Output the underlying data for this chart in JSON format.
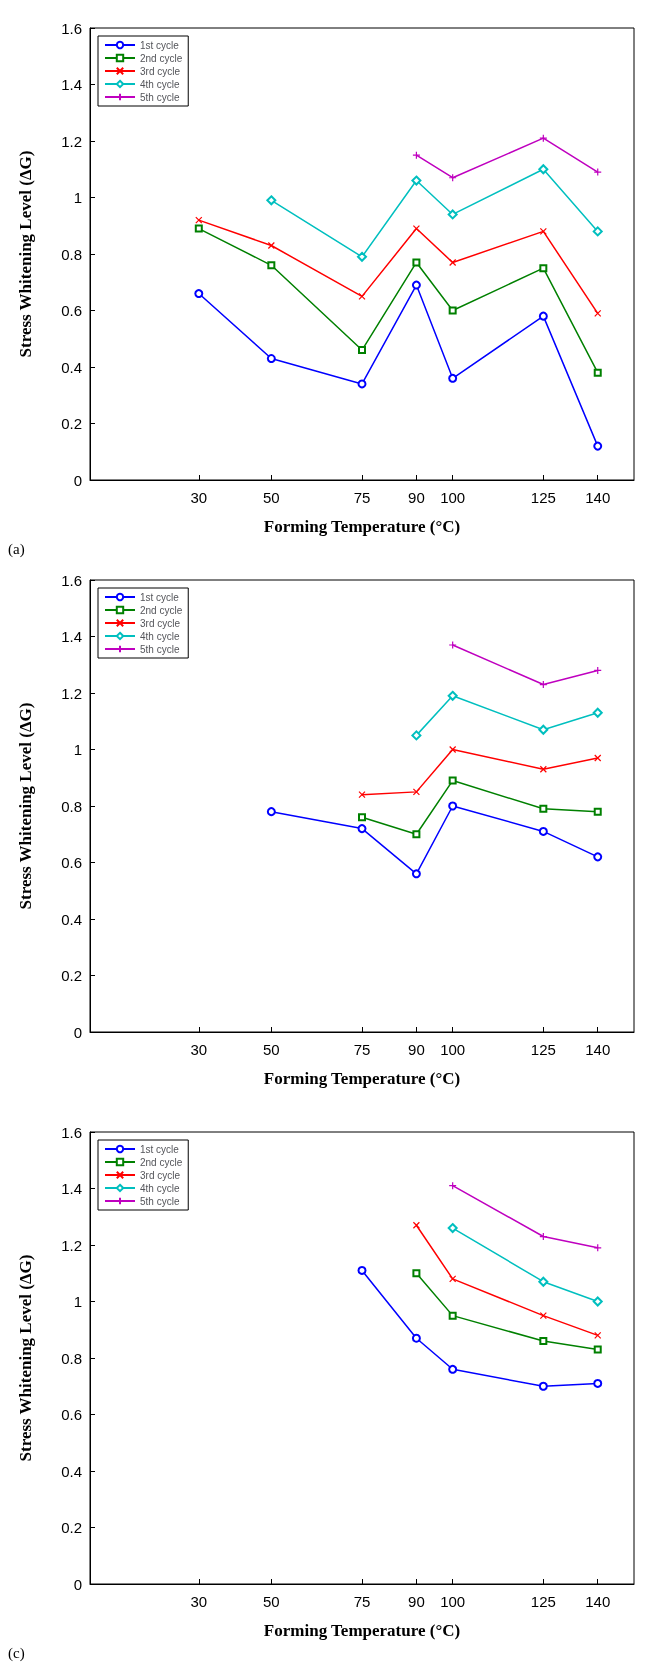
{
  "chart_data": [
    {
      "type": "line",
      "xlabel": "Forming Temperature (°C)",
      "ylabel": "Stress Whitening Level (ΔG)",
      "annotations": [
        "(a)"
      ],
      "xlim": [
        0,
        150
      ],
      "xticks": [
        30,
        50,
        75,
        90,
        100,
        125,
        140
      ],
      "ylim": [
        0,
        1.6
      ],
      "yticks": [
        0,
        0.2,
        0.4,
        0.6,
        0.8,
        1,
        1.2,
        1.4,
        1.6
      ],
      "grid": false,
      "legend": "top left",
      "line_style": "solid",
      "series": [
        {
          "name": "1st cycle",
          "color": "#0000ff",
          "marker": "circle",
          "x": [
            30,
            50,
            75,
            90,
            100,
            125,
            140
          ],
          "values": [
            0.66,
            0.43,
            0.34,
            0.69,
            0.36,
            0.58,
            0.12
          ]
        },
        {
          "name": "2nd cycle",
          "color": "#008000",
          "marker": "square",
          "x": [
            30,
            50,
            75,
            90,
            100,
            125,
            140
          ],
          "values": [
            0.89,
            0.76,
            0.46,
            0.77,
            0.6,
            0.75,
            0.38
          ]
        },
        {
          "name": "3rd cycle",
          "color": "#ff0000",
          "marker": "cross",
          "x": [
            30,
            50,
            75,
            90,
            100,
            125,
            140
          ],
          "values": [
            0.92,
            0.83,
            0.65,
            0.89,
            0.77,
            0.88,
            0.59
          ]
        },
        {
          "name": "4th cycle",
          "color": "#00bfbf",
          "marker": "diamond",
          "x": [
            50,
            75,
            90,
            100,
            125,
            140
          ],
          "values": [
            0.99,
            0.79,
            1.06,
            0.94,
            1.1,
            0.88
          ]
        },
        {
          "name": "5th cycle",
          "color": "#bf00bf",
          "marker": "plus",
          "x": [
            90,
            100,
            125,
            140
          ],
          "values": [
            1.15,
            1.07,
            1.21,
            1.09
          ]
        }
      ]
    },
    {
      "type": "line",
      "xlabel": "Forming Temperature (°C)",
      "ylabel": "Stress Whitening Level (ΔG)",
      "xlim": [
        0,
        150
      ],
      "xticks": [
        30,
        50,
        75,
        90,
        100,
        125,
        140
      ],
      "ylim": [
        0,
        1.6
      ],
      "yticks": [
        0,
        0.2,
        0.4,
        0.6,
        0.8,
        1,
        1.2,
        1.4,
        1.6
      ],
      "grid": false,
      "legend": "top left",
      "line_style": "solid",
      "series": [
        {
          "name": "1st cycle",
          "color": "#0000ff",
          "marker": "circle",
          "x": [
            50,
            75,
            90,
            100,
            125,
            140
          ],
          "values": [
            0.78,
            0.72,
            0.56,
            0.8,
            0.71,
            0.62
          ]
        },
        {
          "name": "2nd cycle",
          "color": "#008000",
          "marker": "square",
          "x": [
            75,
            90,
            100,
            125,
            140
          ],
          "values": [
            0.76,
            0.7,
            0.89,
            0.79,
            0.78
          ]
        },
        {
          "name": "3rd cycle",
          "color": "#ff0000",
          "marker": "cross",
          "x": [
            75,
            90,
            100,
            125,
            140
          ],
          "values": [
            0.84,
            0.85,
            1.0,
            0.93,
            0.97
          ]
        },
        {
          "name": "4th cycle",
          "color": "#00bfbf",
          "marker": "diamond",
          "x": [
            90,
            100,
            125,
            140
          ],
          "values": [
            1.05,
            1.19,
            1.07,
            1.13
          ]
        },
        {
          "name": "5th cycle",
          "color": "#bf00bf",
          "marker": "plus",
          "x": [
            100,
            125,
            140
          ],
          "values": [
            1.37,
            1.23,
            1.28
          ]
        }
      ]
    },
    {
      "type": "line",
      "xlabel": "Forming Temperature (°C)",
      "ylabel": "Stress Whitening Level (ΔG)",
      "annotations": [
        "(c)"
      ],
      "xlim": [
        0,
        150
      ],
      "xticks": [
        30,
        50,
        75,
        90,
        100,
        125,
        140
      ],
      "ylim": [
        0,
        1.6
      ],
      "yticks": [
        0,
        0.2,
        0.4,
        0.6,
        0.8,
        1,
        1.2,
        1.4,
        1.6
      ],
      "grid": false,
      "legend": "top left",
      "line_style": "solid",
      "series": [
        {
          "name": "1st cycle",
          "color": "#0000ff",
          "marker": "circle",
          "x": [
            75,
            90,
            100,
            125,
            140
          ],
          "values": [
            1.11,
            0.87,
            0.76,
            0.7,
            0.71
          ]
        },
        {
          "name": "2nd cycle",
          "color": "#008000",
          "marker": "square",
          "x": [
            90,
            100,
            125,
            140
          ],
          "values": [
            1.1,
            0.95,
            0.86,
            0.83
          ]
        },
        {
          "name": "3rd cycle",
          "color": "#ff0000",
          "marker": "cross",
          "x": [
            90,
            100,
            125,
            140
          ],
          "values": [
            1.27,
            1.08,
            0.95,
            0.88
          ]
        },
        {
          "name": "4th cycle",
          "color": "#00bfbf",
          "marker": "diamond",
          "x": [
            100,
            125,
            140
          ],
          "values": [
            1.26,
            1.07,
            1.0
          ]
        },
        {
          "name": "5th cycle",
          "color": "#bf00bf",
          "marker": "plus",
          "x": [
            100,
            125,
            140
          ],
          "values": [
            1.41,
            1.23,
            1.19
          ]
        }
      ]
    }
  ]
}
